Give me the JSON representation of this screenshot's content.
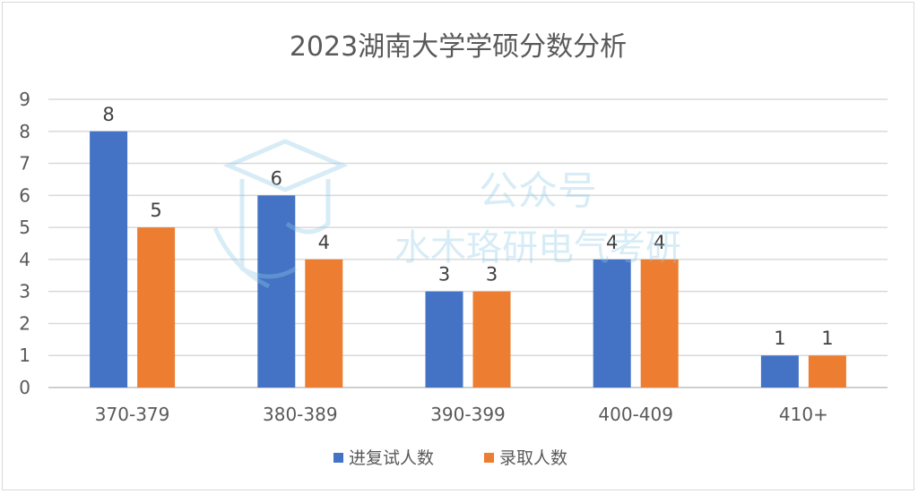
{
  "chart_data": {
    "type": "bar",
    "title": "2023湖南大学学硕分数分析",
    "xlabel": "",
    "ylabel": "",
    "categories": [
      "370-379",
      "380-389",
      "390-399",
      "400-409",
      "410+"
    ],
    "series": [
      {
        "name": "进复试人数",
        "values": [
          8,
          6,
          3,
          4,
          1
        ],
        "color": "#4472C4"
      },
      {
        "name": "录取人数",
        "values": [
          5,
          4,
          3,
          4,
          1
        ],
        "color": "#ED7D31"
      }
    ],
    "ylim": [
      0,
      9
    ],
    "yticks": [
      0,
      1,
      2,
      3,
      4,
      5,
      6,
      7,
      8,
      9
    ],
    "grid": true,
    "legend": "bottom",
    "data_labels": true
  },
  "watermark": {
    "line1": "公众号",
    "line2": "水木珞研电气考研"
  }
}
